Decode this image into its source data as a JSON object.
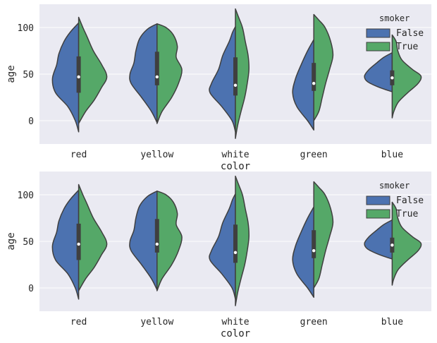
{
  "chart_data": [
    {
      "type": "violin",
      "split": true,
      "xlabel": "color",
      "ylabel": "age",
      "ylim": [
        -25,
        125
      ],
      "yticks": [
        0,
        50,
        100
      ],
      "categories": [
        "red",
        "yellow",
        "white",
        "green",
        "blue"
      ],
      "grid": true,
      "legend": {
        "title": "smoker",
        "placement": "top-right",
        "entries": [
          "False",
          "True"
        ]
      },
      "series_colors": {
        "False": "#4c72b0",
        "True": "#55a868"
      },
      "violins": [
        {
          "category": "red",
          "False": {
            "min": -12,
            "max": 105,
            "shape": [
              [
                -12,
                0
              ],
              [
                0,
                0.12
              ],
              [
                15,
                0.38
              ],
              [
                30,
                0.82
              ],
              [
                45,
                0.93
              ],
              [
                60,
                0.78
              ],
              [
                72,
                0.7
              ],
              [
                85,
                0.52
              ],
              [
                95,
                0.3
              ],
              [
                105,
                0
              ]
            ]
          },
          "True": {
            "min": -3,
            "max": 111,
            "shape": [
              [
                -3,
                0
              ],
              [
                10,
                0.25
              ],
              [
                22,
                0.55
              ],
              [
                35,
                0.8
              ],
              [
                47,
                1.0
              ],
              [
                60,
                0.82
              ],
              [
                75,
                0.52
              ],
              [
                90,
                0.3
              ],
              [
                100,
                0.15
              ],
              [
                111,
                0
              ]
            ]
          },
          "box": {
            "q1": 30,
            "median": 47,
            "q3": 69
          }
        },
        {
          "category": "yellow",
          "False": {
            "min": -2,
            "max": 104,
            "shape": [
              [
                -2,
                0
              ],
              [
                10,
                0.2
              ],
              [
                25,
                0.55
              ],
              [
                40,
                0.92
              ],
              [
                50,
                0.96
              ],
              [
                62,
                0.82
              ],
              [
                75,
                0.75
              ],
              [
                88,
                0.62
              ],
              [
                98,
                0.35
              ],
              [
                104,
                0
              ]
            ]
          },
          "True": {
            "min": -3,
            "max": 104,
            "shape": [
              [
                -3,
                0
              ],
              [
                10,
                0.18
              ],
              [
                25,
                0.52
              ],
              [
                40,
                0.76
              ],
              [
                55,
                0.88
              ],
              [
                68,
                0.68
              ],
              [
                80,
                0.72
              ],
              [
                92,
                0.58
              ],
              [
                100,
                0.32
              ],
              [
                104,
                0
              ]
            ]
          },
          "box": {
            "q1": 38,
            "median": 47,
            "q3": 74
          }
        },
        {
          "category": "white",
          "False": {
            "min": -12,
            "max": 101,
            "shape": [
              [
                -12,
                0
              ],
              [
                0,
                0.12
              ],
              [
                15,
                0.48
              ],
              [
                30,
                0.9
              ],
              [
                40,
                0.85
              ],
              [
                55,
                0.6
              ],
              [
                70,
                0.45
              ],
              [
                85,
                0.22
              ],
              [
                95,
                0.1
              ],
              [
                101,
                0
              ]
            ]
          },
          "True": {
            "min": -19,
            "max": 120,
            "shape": [
              [
                -19,
                0
              ],
              [
                -5,
                0.08
              ],
              [
                10,
                0.2
              ],
              [
                25,
                0.33
              ],
              [
                40,
                0.42
              ],
              [
                55,
                0.48
              ],
              [
                70,
                0.45
              ],
              [
                85,
                0.35
              ],
              [
                100,
                0.25
              ],
              [
                112,
                0.1
              ],
              [
                120,
                0
              ]
            ]
          },
          "box": {
            "q1": 27,
            "median": 38,
            "q3": 68
          }
        },
        {
          "category": "green",
          "False": {
            "min": -10,
            "max": 87,
            "shape": [
              [
                -10,
                0
              ],
              [
                0,
                0.22
              ],
              [
                15,
                0.6
              ],
              [
                30,
                0.75
              ],
              [
                45,
                0.65
              ],
              [
                60,
                0.45
              ],
              [
                75,
                0.22
              ],
              [
                87,
                0
              ]
            ]
          },
          "True": {
            "min": 0,
            "max": 114,
            "shape": [
              [
                0,
                0
              ],
              [
                10,
                0.18
              ],
              [
                25,
                0.3
              ],
              [
                40,
                0.42
              ],
              [
                55,
                0.56
              ],
              [
                70,
                0.68
              ],
              [
                85,
                0.6
              ],
              [
                100,
                0.4
              ],
              [
                108,
                0.18
              ],
              [
                114,
                0
              ]
            ]
          },
          "box": {
            "q1": 32,
            "median": 40,
            "q3": 62
          }
        },
        {
          "category": "blue",
          "False": {
            "min": 31,
            "max": 73,
            "shape": [
              [
                31,
                0
              ],
              [
                36,
                0.48
              ],
              [
                42,
                0.88
              ],
              [
                48,
                0.98
              ],
              [
                55,
                0.82
              ],
              [
                62,
                0.55
              ],
              [
                68,
                0.3
              ],
              [
                73,
                0
              ]
            ]
          },
          "True": {
            "min": 3,
            "max": 92,
            "shape": [
              [
                3,
                0
              ],
              [
                10,
                0.06
              ],
              [
                20,
                0.22
              ],
              [
                30,
                0.55
              ],
              [
                40,
                0.92
              ],
              [
                48,
                1.02
              ],
              [
                55,
                0.72
              ],
              [
                65,
                0.35
              ],
              [
                75,
                0.2
              ],
              [
                85,
                0.14
              ],
              [
                92,
                0
              ]
            ]
          },
          "box": {
            "q1": 38,
            "median": 46,
            "q3": 54
          }
        }
      ]
    },
    {
      "type": "violin",
      "split": true,
      "xlabel": "color",
      "ylabel": "age",
      "ylim": [
        -25,
        125
      ],
      "yticks": [
        0,
        50,
        100
      ],
      "categories": [
        "red",
        "yellow",
        "white",
        "green",
        "blue"
      ],
      "grid": true,
      "legend": {
        "title": "smoker",
        "placement": "top-right",
        "entries": [
          "False",
          "True"
        ]
      },
      "series_colors": {
        "False": "#4c72b0",
        "True": "#55a868"
      },
      "violins": [
        {
          "category": "red",
          "False": {
            "min": -12,
            "max": 105,
            "shape": [
              [
                -12,
                0
              ],
              [
                0,
                0.12
              ],
              [
                15,
                0.38
              ],
              [
                30,
                0.82
              ],
              [
                45,
                0.93
              ],
              [
                60,
                0.78
              ],
              [
                72,
                0.7
              ],
              [
                85,
                0.52
              ],
              [
                95,
                0.3
              ],
              [
                105,
                0
              ]
            ]
          },
          "True": {
            "min": -3,
            "max": 111,
            "shape": [
              [
                -3,
                0
              ],
              [
                10,
                0.25
              ],
              [
                22,
                0.55
              ],
              [
                35,
                0.8
              ],
              [
                47,
                1.0
              ],
              [
                60,
                0.82
              ],
              [
                75,
                0.52
              ],
              [
                90,
                0.3
              ],
              [
                100,
                0.15
              ],
              [
                111,
                0
              ]
            ]
          },
          "box": {
            "q1": 30,
            "median": 47,
            "q3": 69
          }
        },
        {
          "category": "yellow",
          "False": {
            "min": -2,
            "max": 104,
            "shape": [
              [
                -2,
                0
              ],
              [
                10,
                0.2
              ],
              [
                25,
                0.55
              ],
              [
                40,
                0.92
              ],
              [
                50,
                0.96
              ],
              [
                62,
                0.82
              ],
              [
                75,
                0.75
              ],
              [
                88,
                0.62
              ],
              [
                98,
                0.35
              ],
              [
                104,
                0
              ]
            ]
          },
          "True": {
            "min": -3,
            "max": 104,
            "shape": [
              [
                -3,
                0
              ],
              [
                10,
                0.18
              ],
              [
                25,
                0.52
              ],
              [
                40,
                0.76
              ],
              [
                55,
                0.88
              ],
              [
                68,
                0.68
              ],
              [
                80,
                0.72
              ],
              [
                92,
                0.58
              ],
              [
                100,
                0.32
              ],
              [
                104,
                0
              ]
            ]
          },
          "box": {
            "q1": 38,
            "median": 47,
            "q3": 74
          }
        },
        {
          "category": "white",
          "False": {
            "min": -12,
            "max": 101,
            "shape": [
              [
                -12,
                0
              ],
              [
                0,
                0.12
              ],
              [
                15,
                0.48
              ],
              [
                30,
                0.9
              ],
              [
                40,
                0.85
              ],
              [
                55,
                0.6
              ],
              [
                70,
                0.45
              ],
              [
                85,
                0.22
              ],
              [
                95,
                0.1
              ],
              [
                101,
                0
              ]
            ]
          },
          "True": {
            "min": -19,
            "max": 120,
            "shape": [
              [
                -19,
                0
              ],
              [
                -5,
                0.08
              ],
              [
                10,
                0.2
              ],
              [
                25,
                0.33
              ],
              [
                40,
                0.42
              ],
              [
                55,
                0.48
              ],
              [
                70,
                0.45
              ],
              [
                85,
                0.35
              ],
              [
                100,
                0.25
              ],
              [
                112,
                0.1
              ],
              [
                120,
                0
              ]
            ]
          },
          "box": {
            "q1": 27,
            "median": 38,
            "q3": 68
          }
        },
        {
          "category": "green",
          "False": {
            "min": -10,
            "max": 87,
            "shape": [
              [
                -10,
                0
              ],
              [
                0,
                0.22
              ],
              [
                15,
                0.6
              ],
              [
                30,
                0.75
              ],
              [
                45,
                0.65
              ],
              [
                60,
                0.45
              ],
              [
                75,
                0.22
              ],
              [
                87,
                0
              ]
            ]
          },
          "True": {
            "min": 0,
            "max": 114,
            "shape": [
              [
                0,
                0
              ],
              [
                10,
                0.18
              ],
              [
                25,
                0.3
              ],
              [
                40,
                0.42
              ],
              [
                55,
                0.56
              ],
              [
                70,
                0.68
              ],
              [
                85,
                0.6
              ],
              [
                100,
                0.4
              ],
              [
                108,
                0.18
              ],
              [
                114,
                0
              ]
            ]
          },
          "box": {
            "q1": 32,
            "median": 40,
            "q3": 62
          }
        },
        {
          "category": "blue",
          "False": {
            "min": 31,
            "max": 73,
            "shape": [
              [
                31,
                0
              ],
              [
                36,
                0.48
              ],
              [
                42,
                0.88
              ],
              [
                48,
                0.98
              ],
              [
                55,
                0.82
              ],
              [
                62,
                0.55
              ],
              [
                68,
                0.3
              ],
              [
                73,
                0
              ]
            ]
          },
          "True": {
            "min": 3,
            "max": 92,
            "shape": [
              [
                3,
                0
              ],
              [
                10,
                0.06
              ],
              [
                20,
                0.22
              ],
              [
                30,
                0.55
              ],
              [
                40,
                0.92
              ],
              [
                48,
                1.02
              ],
              [
                55,
                0.72
              ],
              [
                65,
                0.35
              ],
              [
                75,
                0.2
              ],
              [
                85,
                0.14
              ],
              [
                92,
                0
              ]
            ]
          },
          "box": {
            "q1": 38,
            "median": 46,
            "q3": 54
          }
        }
      ]
    }
  ]
}
